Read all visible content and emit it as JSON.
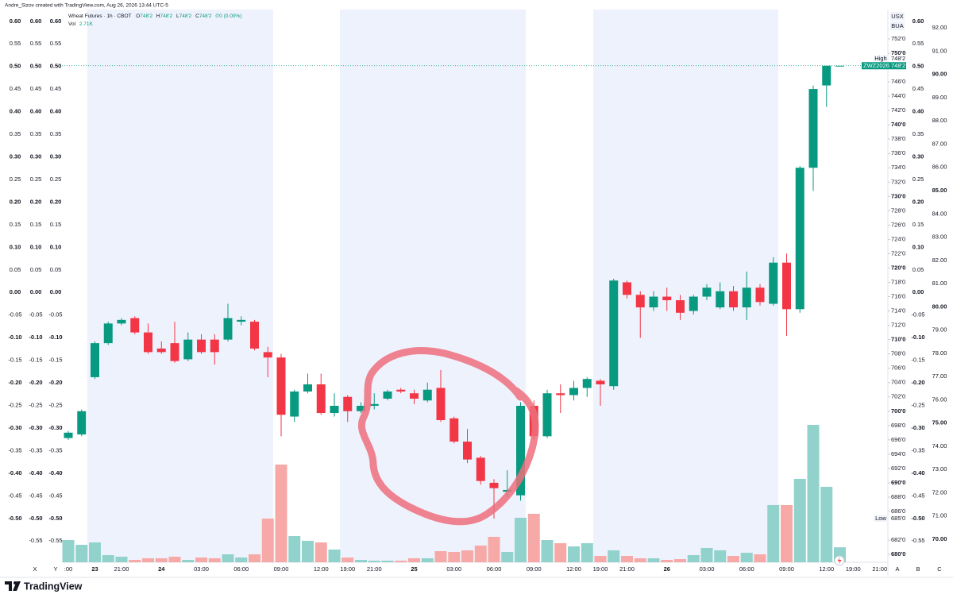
{
  "chart_data": {
    "type": "candlestick",
    "header": "Andre_Sizov created with TradingView.com, Aug 26, 2026 13:44 UTC-5",
    "legend": {
      "title": "Wheat Futures · 1h · CBOT",
      "fields": [
        {
          "key": "O",
          "value": "748'2"
        },
        {
          "key": "H",
          "value": "748'2"
        },
        {
          "key": "L",
          "value": "748'2"
        },
        {
          "key": "C",
          "value": "748'2"
        }
      ],
      "change": "0'0 (0.00%)",
      "volume_name": "Vol",
      "volume_value": "2.71K"
    },
    "currency": "USX",
    "unit": "BUA",
    "categories": [
      ":00",
      null,
      "23",
      null,
      "21:00",
      null,
      null,
      "24",
      null,
      null,
      "03:00",
      null,
      null,
      "06:00",
      null,
      null,
      "09:00",
      null,
      null,
      "12:00",
      null,
      "19:00",
      null,
      "21:00",
      null,
      null,
      "25",
      null,
      null,
      "03:00",
      null,
      null,
      "06:00",
      null,
      null,
      "09:00",
      null,
      null,
      "12:00",
      null,
      "19:00",
      null,
      "21:00",
      null,
      null,
      "26",
      null,
      null,
      "03:00",
      null,
      null,
      "06:00",
      null,
      null,
      "09:00",
      null,
      null,
      "12:00",
      null,
      "19:00",
      null,
      "21:00"
    ],
    "open": [
      696.25,
      696.75,
      704.75,
      709.5,
      712.25,
      713,
      711,
      708.75,
      709.5,
      707.25,
      710,
      710,
      710,
      712.5,
      712.5,
      708.25,
      707.5,
      699.25,
      702.75,
      703.75,
      699.75,
      702,
      700,
      700.75,
      701.75,
      703,
      702.5,
      701.5,
      703.25,
      699,
      695.75,
      693.5,
      690,
      688.75,
      688.25,
      700.75,
      696.5,
      702.5,
      702.25,
      703.25,
      704.25,
      703.5,
      718,
      716.25,
      714.5,
      716,
      715.5,
      714,
      716,
      714.5,
      716.75,
      714.5,
      717.25,
      715,
      720.75,
      714.25,
      734,
      745.5,
      748.25,
      null,
      null,
      null
    ],
    "high": [
      697.25,
      700.25,
      709.75,
      712.5,
      713,
      713.25,
      712.25,
      709.75,
      712.5,
      711,
      710.75,
      710.75,
      715,
      713.25,
      712.75,
      709,
      708,
      703,
      705.25,
      705.25,
      702.5,
      702.25,
      701.25,
      702.5,
      703,
      703.25,
      703,
      704,
      705.75,
      699.25,
      697.5,
      693.75,
      690.5,
      691.75,
      701.25,
      701.5,
      703,
      703.75,
      704.25,
      704.75,
      704.5,
      718.5,
      718.25,
      716.75,
      716.75,
      717.25,
      716.25,
      716.25,
      717.75,
      718,
      717.5,
      719.5,
      717.75,
      721.5,
      722,
      734.25,
      745.5,
      748.25,
      748.25,
      null,
      null,
      null
    ],
    "low": [
      696,
      696.5,
      704.5,
      709.25,
      712,
      710.75,
      708,
      708,
      706.75,
      707,
      708,
      706.5,
      709.75,
      712,
      708.5,
      704.75,
      696.5,
      698.5,
      702.5,
      699.5,
      699.25,
      698.5,
      699.75,
      700.25,
      701.5,
      702.5,
      701,
      701.25,
      698.5,
      695.5,
      692.75,
      689.75,
      685,
      688,
      687.5,
      696,
      696.25,
      699.75,
      701.5,
      702,
      700.75,
      703,
      715.75,
      710.25,
      714,
      714,
      712.75,
      713.5,
      715.5,
      714.25,
      714,
      712.75,
      714.75,
      714.75,
      710.5,
      713.75,
      730.75,
      742.5,
      748.25,
      null,
      null,
      null
    ],
    "close": [
      697,
      700,
      709.5,
      712.25,
      712.75,
      711,
      708.25,
      708.25,
      707,
      710,
      708.25,
      708.25,
      713,
      712.75,
      708.75,
      707.5,
      699.5,
      702.75,
      703.75,
      699.75,
      700.75,
      700,
      700.75,
      701,
      702.75,
      702.75,
      701.75,
      703,
      698.75,
      695.75,
      693.25,
      690.25,
      689.25,
      689,
      700.75,
      696.5,
      702.5,
      702.25,
      703.25,
      704.5,
      703.75,
      718.25,
      716.25,
      714.5,
      716,
      715.5,
      713.75,
      716,
      717.25,
      716.75,
      714.5,
      717.25,
      715.25,
      720.75,
      714.25,
      734,
      745,
      748.25,
      748.25,
      null,
      null,
      null
    ],
    "volume": [
      4020,
      3160,
      3590,
      1290,
      1010,
      430,
      720,
      720,
      1010,
      430,
      860,
      720,
      1440,
      860,
      1440,
      7900,
      17680,
      4740,
      3880,
      3590,
      2300,
      860,
      430,
      290,
      290,
      290,
      720,
      720,
      2010,
      1870,
      2160,
      3020,
      4600,
      1870,
      8050,
      8770,
      4020,
      3450,
      2870,
      3450,
      1150,
      2160,
      1150,
      720,
      720,
      430,
      570,
      1290,
      2590,
      2160,
      1150,
      1720,
      1440,
      10350,
      10350,
      15090,
      24860,
      13650,
      2710,
      null,
      null,
      null
    ],
    "up_color": "#089981",
    "down_color": "#f23645",
    "volume_up_color": "#92d2cc",
    "volume_down_color": "#f7a9a7",
    "ylim": [
      678.9,
      756.1
    ],
    "major_step": 10,
    "yticks": [
      {
        "value": 752,
        "label": "752'0"
      },
      {
        "value": 750,
        "label": "750'0"
      },
      {
        "value": 746,
        "label": "746'0"
      },
      {
        "value": 744,
        "label": "744'0"
      },
      {
        "value": 742,
        "label": "742'0"
      },
      {
        "value": 740,
        "label": "740'0"
      },
      {
        "value": 738,
        "label": "738'0"
      },
      {
        "value": 736,
        "label": "736'0"
      },
      {
        "value": 734,
        "label": "734'0"
      },
      {
        "value": 732,
        "label": "732'0"
      },
      {
        "value": 730,
        "label": "730'0"
      },
      {
        "value": 728,
        "label": "728'0"
      },
      {
        "value": 726,
        "label": "726'0"
      },
      {
        "value": 724,
        "label": "724'0"
      },
      {
        "value": 722,
        "label": "722'0"
      },
      {
        "value": 720,
        "label": "720'0"
      },
      {
        "value": 718,
        "label": "718'0"
      },
      {
        "value": 716,
        "label": "716'0"
      },
      {
        "value": 714,
        "label": "714'0"
      },
      {
        "value": 712,
        "label": "712'0"
      },
      {
        "value": 710,
        "label": "710'0"
      },
      {
        "value": 708,
        "label": "708'0"
      },
      {
        "value": 706,
        "label": "706'0"
      },
      {
        "value": 704,
        "label": "704'0"
      },
      {
        "value": 702,
        "label": "702'0"
      },
      {
        "value": 700,
        "label": "700'0"
      },
      {
        "value": 698,
        "label": "698'0"
      },
      {
        "value": 696,
        "label": "696'0"
      },
      {
        "value": 694,
        "label": "694'0"
      },
      {
        "value": 692,
        "label": "692'0"
      },
      {
        "value": 690,
        "label": "690'0"
      },
      {
        "value": 688,
        "label": "688'0"
      },
      {
        "value": 686,
        "label": "686'0"
      },
      {
        "value": 682,
        "label": "682'0"
      },
      {
        "value": 680,
        "label": "680'0"
      }
    ],
    "volume_ylim": [
      0,
      100000
    ],
    "high_marker": {
      "name": "High",
      "value": 748.25,
      "label": "748'2"
    },
    "last_marker": {
      "name": "ZWZ2026",
      "value": 748.25,
      "label": "748'2"
    },
    "low_marker": {
      "name": "Low",
      "value": 685,
      "label": "685'0"
    },
    "extra_axes": [
      {
        "ylim": [
          -0.597,
          0.626
        ],
        "major_step": 0.1,
        "ticks": [
          {
            "value": 0.6,
            "label": "0.60"
          },
          {
            "value": 0.55,
            "label": "0.55"
          },
          {
            "value": 0.5,
            "label": "0.50"
          },
          {
            "value": 0.45,
            "label": "0.45"
          },
          {
            "value": 0.4,
            "label": "0.40"
          },
          {
            "value": 0.35,
            "label": "0.35"
          },
          {
            "value": 0.3,
            "label": "0.30"
          },
          {
            "value": 0.25,
            "label": "0.25"
          },
          {
            "value": 0.2,
            "label": "0.20"
          },
          {
            "value": 0.15,
            "label": "0.15"
          },
          {
            "value": 0.1,
            "label": "0.10"
          },
          {
            "value": 0.05,
            "label": "0.05"
          },
          {
            "value": 0,
            "label": "0.00"
          },
          {
            "value": -0.05,
            "label": "-0.05"
          },
          {
            "value": -0.1,
            "label": "-0.10"
          },
          {
            "value": -0.15,
            "label": "-0.15"
          },
          {
            "value": -0.2,
            "label": "-0.20"
          },
          {
            "value": -0.25,
            "label": "-0.25"
          },
          {
            "value": -0.3,
            "label": "-0.30"
          },
          {
            "value": -0.35,
            "label": "-0.35"
          },
          {
            "value": -0.4,
            "label": "-0.40"
          },
          {
            "value": -0.45,
            "label": "-0.45"
          },
          {
            "value": -0.5,
            "label": "-0.50"
          }
        ]
      },
      {
        "ylim": [
          -0.597,
          0.626
        ],
        "major_step": 0.1,
        "ticks": [
          {
            "value": 0.6,
            "label": "0.60"
          },
          {
            "value": 0.55,
            "label": "0.55"
          },
          {
            "value": 0.5,
            "label": "0.50"
          },
          {
            "value": 0.45,
            "label": "0.45"
          },
          {
            "value": 0.4,
            "label": "0.40"
          },
          {
            "value": 0.35,
            "label": "0.35"
          },
          {
            "value": 0.3,
            "label": "0.30"
          },
          {
            "value": 0.25,
            "label": "0.25"
          },
          {
            "value": 0.2,
            "label": "0.20"
          },
          {
            "value": 0.15,
            "label": "0.15"
          },
          {
            "value": 0.1,
            "label": "0.10"
          },
          {
            "value": 0.05,
            "label": "0.05"
          },
          {
            "value": 0,
            "label": "0.00"
          },
          {
            "value": -0.05,
            "label": "-0.05"
          },
          {
            "value": -0.1,
            "label": "-0.10"
          },
          {
            "value": -0.15,
            "label": "-0.15"
          },
          {
            "value": -0.2,
            "label": "-0.20"
          },
          {
            "value": -0.25,
            "label": "-0.25"
          },
          {
            "value": -0.3,
            "label": "-0.30"
          },
          {
            "value": -0.35,
            "label": "-0.35"
          },
          {
            "value": -0.4,
            "label": "-0.40"
          },
          {
            "value": -0.45,
            "label": "-0.45"
          },
          {
            "value": -0.5,
            "label": "-0.50"
          },
          {
            "value": -0.55,
            "label": "-0.55"
          }
        ]
      },
      {
        "ylim": [
          -0.597,
          0.626
        ],
        "major_step": 0.1,
        "ticks": [
          {
            "value": 0.6,
            "label": "0.60"
          },
          {
            "value": 0.55,
            "label": "0.55"
          },
          {
            "value": 0.5,
            "label": "0.50"
          },
          {
            "value": 0.45,
            "label": "0.45"
          },
          {
            "value": 0.4,
            "label": "0.40"
          },
          {
            "value": 0.35,
            "label": "0.35"
          },
          {
            "value": 0.3,
            "label": "0.30"
          },
          {
            "value": 0.25,
            "label": "0.25"
          },
          {
            "value": 0.2,
            "label": "0.20"
          },
          {
            "value": 0.15,
            "label": "0.15"
          },
          {
            "value": 0.1,
            "label": "0.10"
          },
          {
            "value": 0.05,
            "label": "0.05"
          },
          {
            "value": 0,
            "label": "0.00"
          },
          {
            "value": -0.05,
            "label": "-0.05"
          },
          {
            "value": -0.1,
            "label": "-0.10"
          },
          {
            "value": -0.15,
            "label": "-0.15"
          },
          {
            "value": -0.2,
            "label": "-0.20"
          },
          {
            "value": -0.25,
            "label": "-0.25"
          },
          {
            "value": -0.3,
            "label": "-0.30"
          },
          {
            "value": -0.35,
            "label": "-0.35"
          },
          {
            "value": -0.4,
            "label": "-0.40"
          },
          {
            "value": -0.45,
            "label": "-0.45"
          },
          {
            "value": -0.5,
            "label": "-0.50"
          },
          {
            "value": -0.55,
            "label": "-0.55"
          }
        ]
      },
      {
        "ylim": [
          -0.597,
          0.626
        ],
        "major_step": 0.1,
        "ticks": [
          {
            "value": 0.6,
            "label": "0.60"
          },
          {
            "value": 0.55,
            "label": "0.55"
          },
          {
            "value": 0.5,
            "label": "0.50"
          },
          {
            "value": 0.45,
            "label": "0.45"
          },
          {
            "value": 0.4,
            "label": "0.40"
          },
          {
            "value": 0.35,
            "label": "0.35"
          },
          {
            "value": 0.3,
            "label": "0.30"
          },
          {
            "value": 0.25,
            "label": "0.25"
          },
          {
            "value": 0.2,
            "label": "0.20"
          },
          {
            "value": 0.15,
            "label": "0.15"
          },
          {
            "value": 0.1,
            "label": "0.10"
          },
          {
            "value": 0.05,
            "label": "0.05"
          },
          {
            "value": 0,
            "label": "0.00"
          },
          {
            "value": -0.05,
            "label": "-0.05"
          },
          {
            "value": -0.1,
            "label": "-0.10"
          },
          {
            "value": -0.15,
            "label": "-0.15"
          },
          {
            "value": -0.2,
            "label": "-0.20"
          },
          {
            "value": -0.25,
            "label": "-0.25"
          },
          {
            "value": -0.3,
            "label": "-0.30"
          },
          {
            "value": -0.35,
            "label": "-0.35"
          },
          {
            "value": -0.4,
            "label": "-0.40"
          },
          {
            "value": -0.45,
            "label": "-0.45"
          },
          {
            "value": -0.5,
            "label": "-0.50"
          },
          {
            "value": -0.55,
            "label": "-0.55"
          }
        ]
      },
      {
        "ylim": [
          69.01,
          92.79
        ],
        "major_step": 5,
        "ticks": [
          {
            "value": 92,
            "label": "92.00"
          },
          {
            "value": 91,
            "label": "91.00"
          },
          {
            "value": 90,
            "label": "90.00"
          },
          {
            "value": 89,
            "label": "89.00"
          },
          {
            "value": 88,
            "label": "88.00"
          },
          {
            "value": 87,
            "label": "87.00"
          },
          {
            "value": 86,
            "label": "86.00"
          },
          {
            "value": 85,
            "label": "85.00"
          },
          {
            "value": 84,
            "label": "84.00"
          },
          {
            "value": 83,
            "label": "83.00"
          },
          {
            "value": 82,
            "label": "82.00"
          },
          {
            "value": 81,
            "label": "81.00"
          },
          {
            "value": 80,
            "label": "80.00"
          },
          {
            "value": 79,
            "label": "79.00"
          },
          {
            "value": 78,
            "label": "78.00"
          },
          {
            "value": 77,
            "label": "77.00"
          },
          {
            "value": 76,
            "label": "76.00"
          },
          {
            "value": 75,
            "label": "75.00"
          },
          {
            "value": 74,
            "label": "74.00"
          },
          {
            "value": 73,
            "label": "73.00"
          },
          {
            "value": 72,
            "label": "72.00"
          },
          {
            "value": 71,
            "label": "71.00"
          },
          {
            "value": 70,
            "label": "70.00"
          }
        ]
      }
    ],
    "left_axis_names": [
      "X",
      "Y"
    ],
    "right_axis_names": [
      "A",
      "B",
      "C"
    ],
    "footer": "TradingView",
    "grid": false
  }
}
